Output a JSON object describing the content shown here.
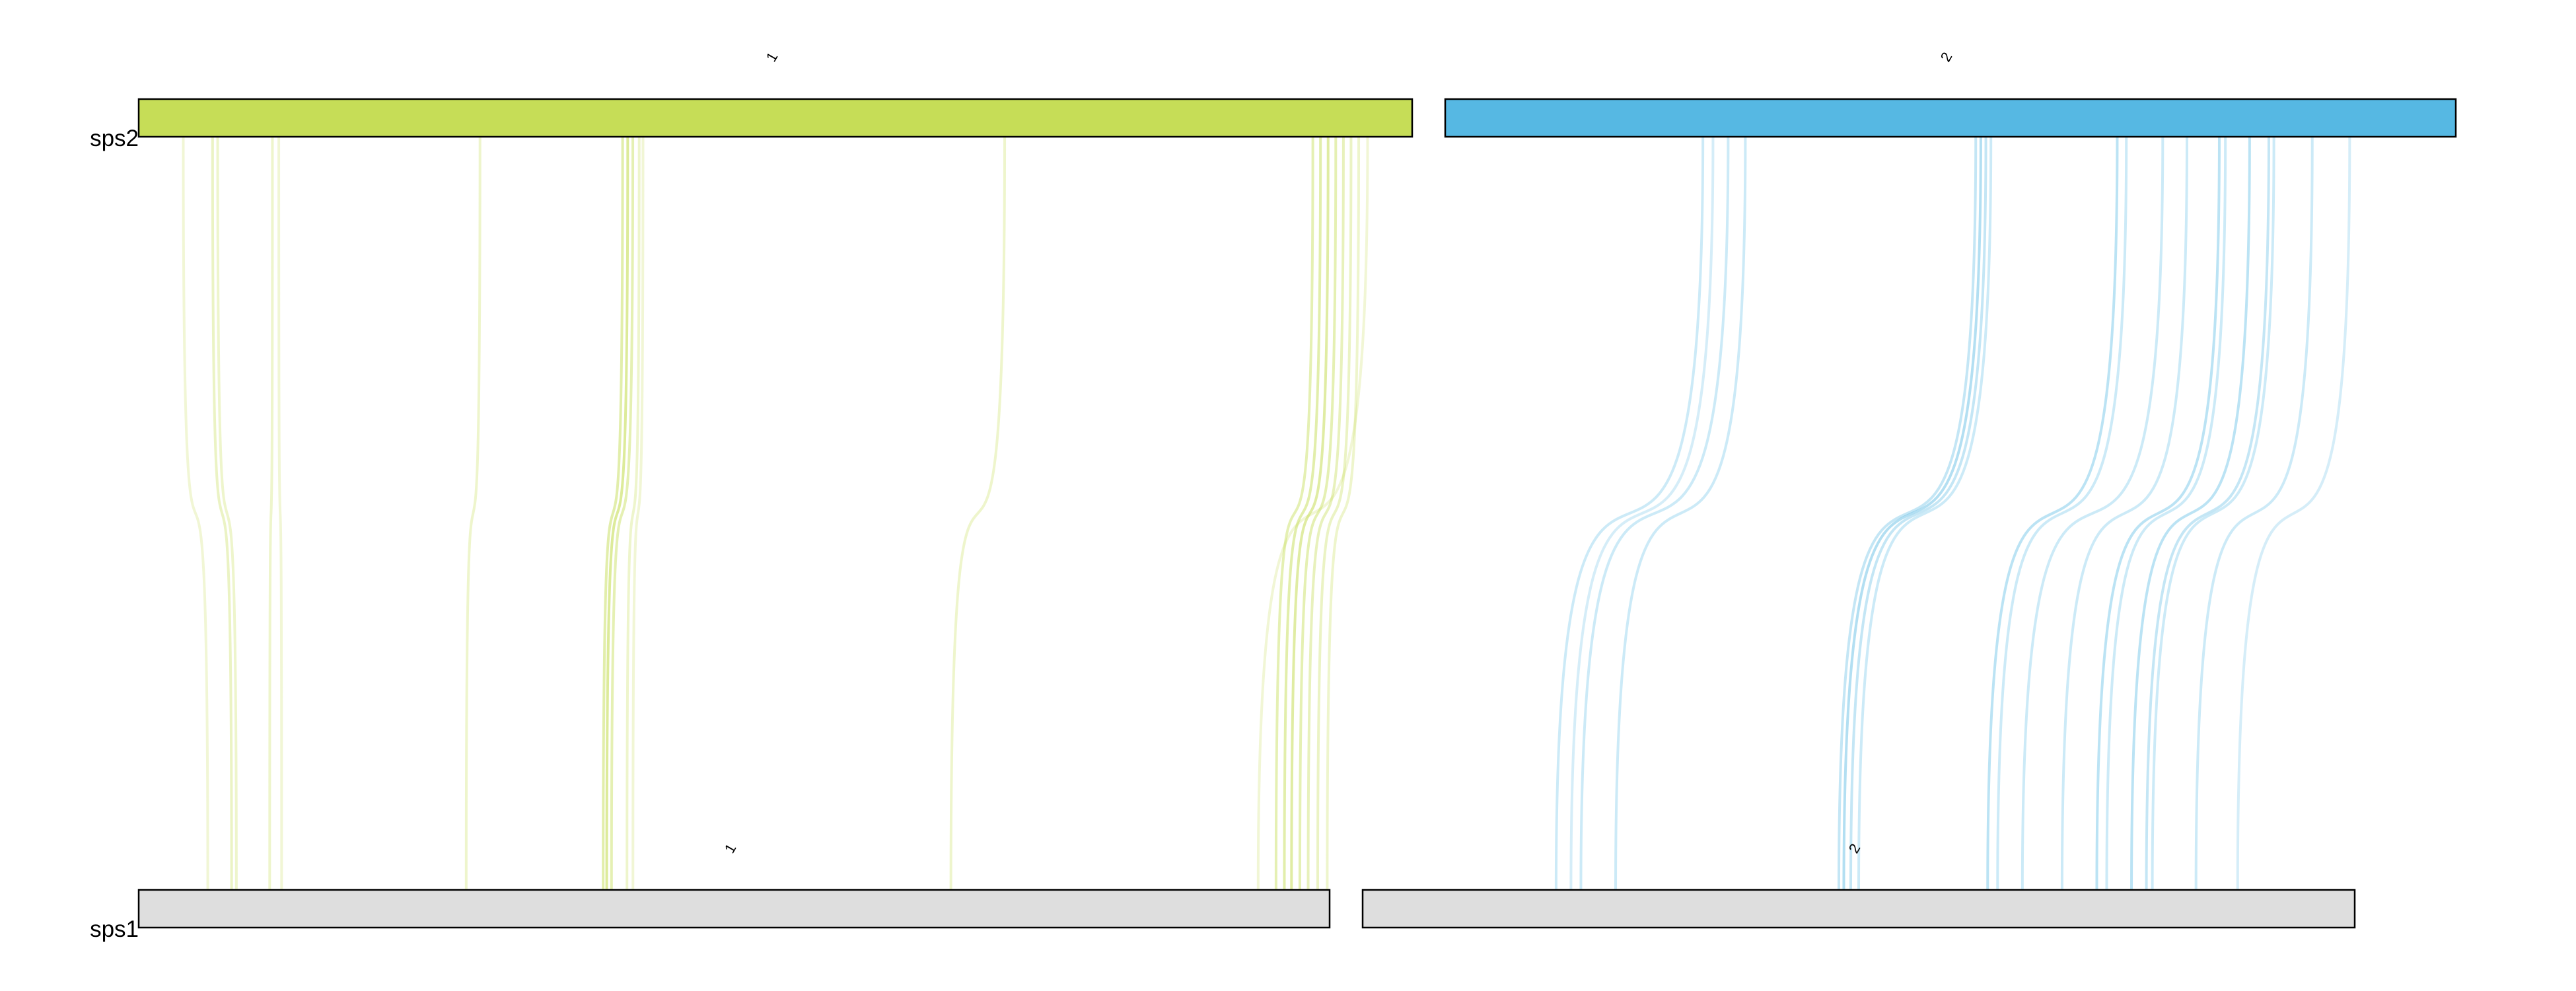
{
  "species": [
    {
      "name": "sps2",
      "chromosomes": [
        {
          "label": "1",
          "color": "#C6DD57"
        },
        {
          "label": "2",
          "color": "#56B8E3"
        }
      ]
    },
    {
      "name": "sps1",
      "chromosomes": [
        {
          "label": "1",
          "color": "#DEDEDE"
        },
        {
          "label": "2",
          "color": "#DEDEDE"
        }
      ]
    }
  ],
  "link_colors": {
    "1": "#C6DD57",
    "2": "#56B8E3"
  },
  "links": [
    {
      "chrom": "1",
      "from": 0.035,
      "to": 0.058,
      "opacity": 0.25
    },
    {
      "chrom": "1",
      "from": 0.058,
      "to": 0.078,
      "opacity": 0.35
    },
    {
      "chrom": "1",
      "from": 0.062,
      "to": 0.082,
      "opacity": 0.3
    },
    {
      "chrom": "1",
      "from": 0.105,
      "to": 0.11,
      "opacity": 0.3
    },
    {
      "chrom": "1",
      "from": 0.11,
      "to": 0.12,
      "opacity": 0.25
    },
    {
      "chrom": "1",
      "from": 0.268,
      "to": 0.275,
      "opacity": 0.3
    },
    {
      "chrom": "1",
      "from": 0.38,
      "to": 0.39,
      "opacity": 0.5
    },
    {
      "chrom": "1",
      "from": 0.384,
      "to": 0.393,
      "opacity": 0.6
    },
    {
      "chrom": "1",
      "from": 0.388,
      "to": 0.397,
      "opacity": 0.45
    },
    {
      "chrom": "1",
      "from": 0.393,
      "to": 0.41,
      "opacity": 0.3
    },
    {
      "chrom": "1",
      "from": 0.396,
      "to": 0.415,
      "opacity": 0.25
    },
    {
      "chrom": "1",
      "from": 0.68,
      "to": 0.682,
      "opacity": 0.3
    },
    {
      "chrom": "1",
      "from": 0.922,
      "to": 0.955,
      "opacity": 0.45
    },
    {
      "chrom": "1",
      "from": 0.928,
      "to": 0.962,
      "opacity": 0.5
    },
    {
      "chrom": "1",
      "from": 0.934,
      "to": 0.968,
      "opacity": 0.55
    },
    {
      "chrom": "1",
      "from": 0.94,
      "to": 0.975,
      "opacity": 0.45
    },
    {
      "chrom": "1",
      "from": 0.946,
      "to": 0.982,
      "opacity": 0.4
    },
    {
      "chrom": "1",
      "from": 0.952,
      "to": 0.99,
      "opacity": 0.35
    },
    {
      "chrom": "1",
      "from": 0.958,
      "to": 0.998,
      "opacity": 0.3
    },
    {
      "chrom": "1",
      "from": 0.965,
      "to": 0.94,
      "opacity": 0.25
    },
    {
      "chrom": "2",
      "from": 0.255,
      "to": 0.195,
      "opacity": 0.3
    },
    {
      "chrom": "2",
      "from": 0.265,
      "to": 0.21,
      "opacity": 0.25
    },
    {
      "chrom": "2",
      "from": 0.28,
      "to": 0.22,
      "opacity": 0.3
    },
    {
      "chrom": "2",
      "from": 0.297,
      "to": 0.255,
      "opacity": 0.3
    },
    {
      "chrom": "2",
      "from": 0.525,
      "to": 0.48,
      "opacity": 0.35
    },
    {
      "chrom": "2",
      "from": 0.53,
      "to": 0.485,
      "opacity": 0.45
    },
    {
      "chrom": "2",
      "from": 0.535,
      "to": 0.492,
      "opacity": 0.35
    },
    {
      "chrom": "2",
      "from": 0.54,
      "to": 0.5,
      "opacity": 0.3
    },
    {
      "chrom": "2",
      "from": 0.665,
      "to": 0.63,
      "opacity": 0.4
    },
    {
      "chrom": "2",
      "from": 0.674,
      "to": 0.64,
      "opacity": 0.3
    },
    {
      "chrom": "2",
      "from": 0.71,
      "to": 0.665,
      "opacity": 0.3
    },
    {
      "chrom": "2",
      "from": 0.734,
      "to": 0.705,
      "opacity": 0.3
    },
    {
      "chrom": "2",
      "from": 0.766,
      "to": 0.74,
      "opacity": 0.4
    },
    {
      "chrom": "2",
      "from": 0.772,
      "to": 0.75,
      "opacity": 0.3
    },
    {
      "chrom": "2",
      "from": 0.796,
      "to": 0.775,
      "opacity": 0.4
    },
    {
      "chrom": "2",
      "from": 0.815,
      "to": 0.79,
      "opacity": 0.35
    },
    {
      "chrom": "2",
      "from": 0.82,
      "to": 0.796,
      "opacity": 0.3
    },
    {
      "chrom": "2",
      "from": 0.858,
      "to": 0.84,
      "opacity": 0.3
    },
    {
      "chrom": "2",
      "from": 0.895,
      "to": 0.882,
      "opacity": 0.25
    }
  ]
}
